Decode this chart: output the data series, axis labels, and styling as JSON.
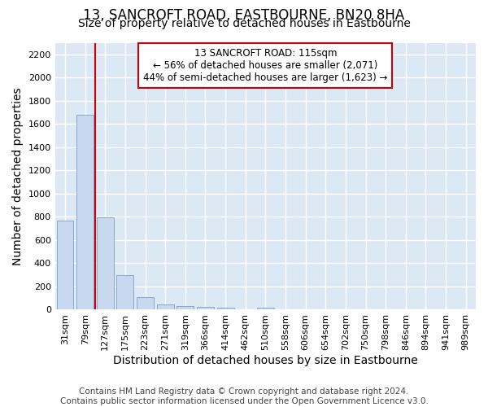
{
  "title": "13, SANCROFT ROAD, EASTBOURNE, BN20 8HA",
  "subtitle": "Size of property relative to detached houses in Eastbourne",
  "xlabel": "Distribution of detached houses by size in Eastbourne",
  "ylabel": "Number of detached properties",
  "categories": [
    "31sqm",
    "79sqm",
    "127sqm",
    "175sqm",
    "223sqm",
    "271sqm",
    "319sqm",
    "366sqm",
    "414sqm",
    "462sqm",
    "510sqm",
    "558sqm",
    "606sqm",
    "654sqm",
    "702sqm",
    "750sqm",
    "798sqm",
    "846sqm",
    "894sqm",
    "941sqm",
    "989sqm"
  ],
  "values": [
    770,
    1680,
    795,
    300,
    110,
    42,
    30,
    22,
    20,
    0,
    20,
    0,
    0,
    0,
    0,
    0,
    0,
    0,
    0,
    0,
    0
  ],
  "bar_color": "#c8d8ee",
  "bar_edge_color": "#7aa0c8",
  "vline_color": "#cc0000",
  "vline_pos": 1.5,
  "annotation_text": "13 SANCROFT ROAD: 115sqm\n← 56% of detached houses are smaller (2,071)\n44% of semi-detached houses are larger (1,623) →",
  "annotation_box_facecolor": "#ffffff",
  "annotation_box_edgecolor": "#cc0000",
  "ylim": [
    0,
    2300
  ],
  "yticks": [
    0,
    200,
    400,
    600,
    800,
    1000,
    1200,
    1400,
    1600,
    1800,
    2000,
    2200
  ],
  "footnote": "Contains HM Land Registry data © Crown copyright and database right 2024.\nContains public sector information licensed under the Open Government Licence v3.0.",
  "fig_bg_color": "#ffffff",
  "plot_bg_color": "#dde8f5",
  "grid_color": "#ffffff",
  "title_fontsize": 12,
  "subtitle_fontsize": 10,
  "axis_label_fontsize": 10,
  "tick_fontsize": 8,
  "annotation_fontsize": 8.5,
  "footnote_fontsize": 7.5
}
